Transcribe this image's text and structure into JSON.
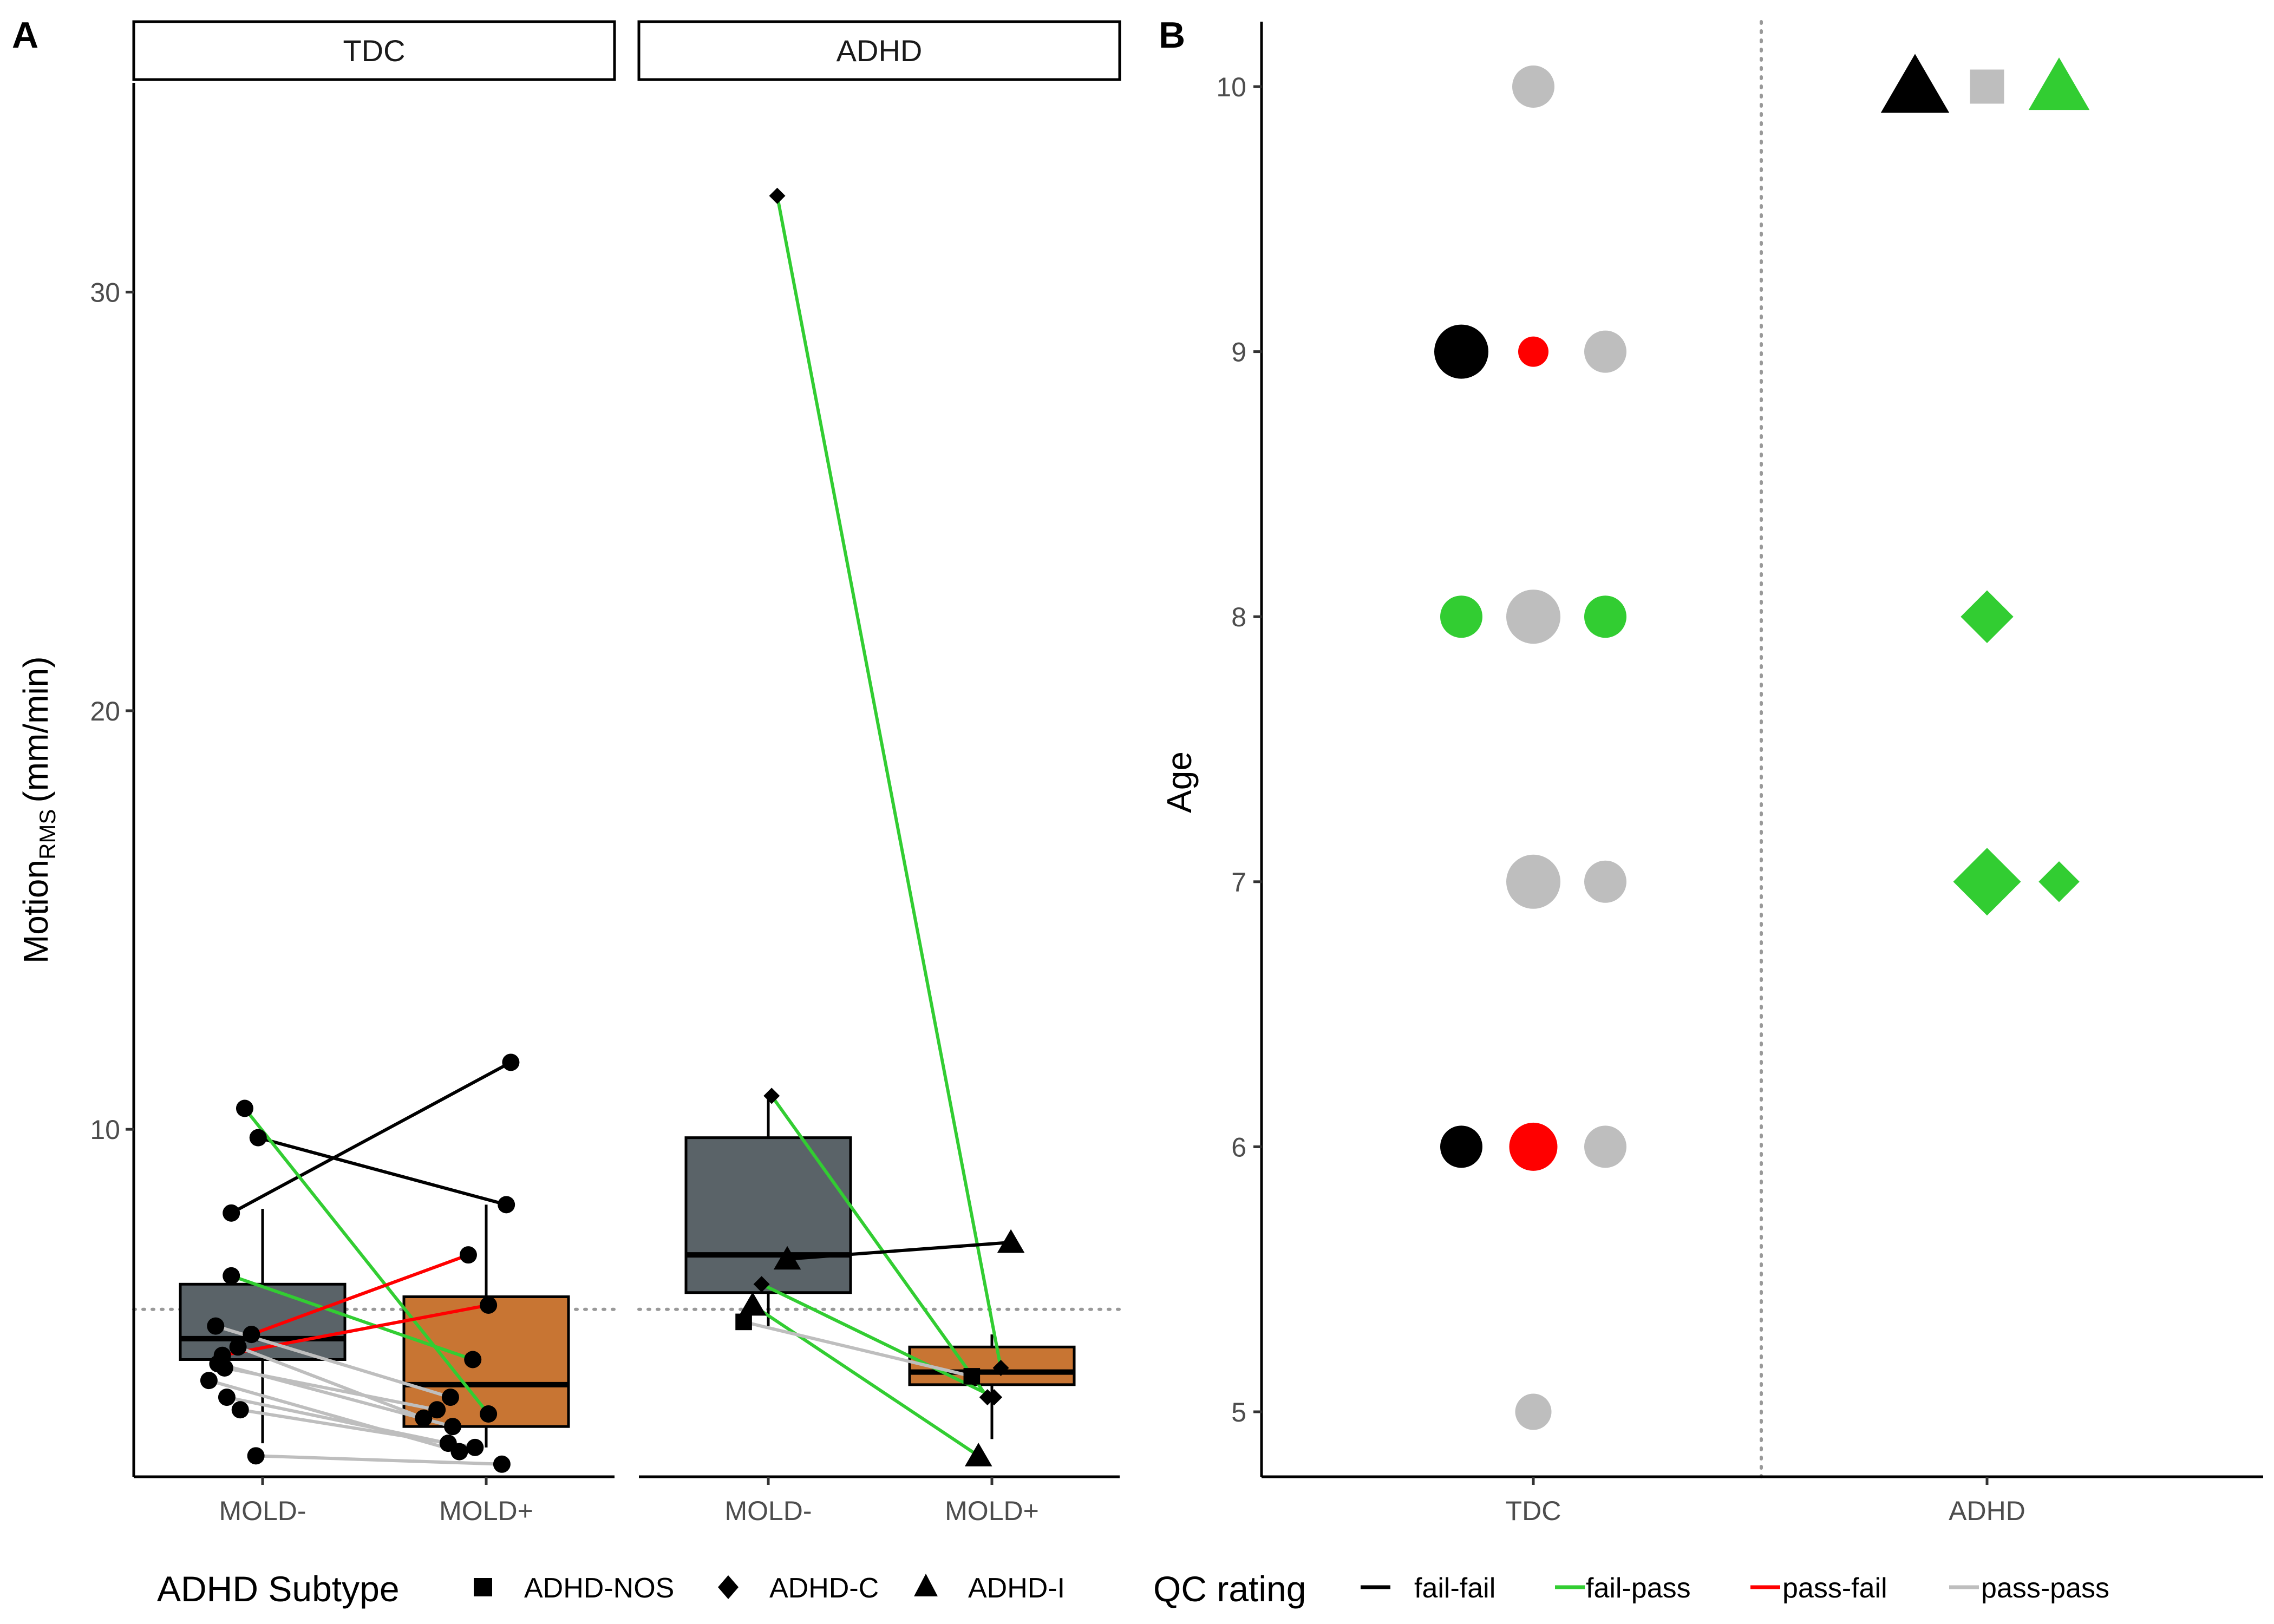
{
  "panel_labels": [
    "A",
    "B"
  ],
  "legend": {
    "shape_title": "ADHD Subtype",
    "shapes": [
      {
        "label": "ADHD-NOS",
        "shape": "square"
      },
      {
        "label": "ADHD-C",
        "shape": "diamond"
      },
      {
        "label": "ADHD-I",
        "shape": "triangle"
      }
    ],
    "color_title": "QC rating",
    "colors": [
      {
        "label": "fail-fail",
        "color": "#000000"
      },
      {
        "label": "fail-pass",
        "color": "#32CD32"
      },
      {
        "label": "pass-fail",
        "color": "#FF0000"
      },
      {
        "label": "pass-pass",
        "color": "#BEBEBE"
      }
    ]
  },
  "chart_data": [
    {
      "panel": "A",
      "type": "box",
      "ylabel": "Motion",
      "ylabel_subscript": "RMS",
      "ylabel_unit": "(mm/min)",
      "ylim": [
        1.7,
        35
      ],
      "yticks": [
        10,
        20,
        30
      ],
      "reference_line_y": 5.7,
      "facets": [
        "TDC",
        "ADHD"
      ],
      "categories": [
        "MOLD-",
        "MOLD+"
      ],
      "box_colors": {
        "MOLD-": "#5A6368",
        "MOLD+": "#C87533"
      },
      "boxes": [
        {
          "facet": "TDC",
          "category": "MOLD-",
          "lower_whisker": 2.5,
          "q1": 4.5,
          "median": 5.0,
          "q3": 6.3,
          "upper_whisker": 8.1
        },
        {
          "facet": "TDC",
          "category": "MOLD+",
          "lower_whisker": 2.4,
          "q1": 2.9,
          "median": 3.9,
          "q3": 6.0,
          "upper_whisker": 8.2
        },
        {
          "facet": "ADHD",
          "category": "MOLD-",
          "lower_whisker": 5.3,
          "q1": 6.1,
          "median": 7.0,
          "q3": 9.8,
          "upper_whisker": 10.8
        },
        {
          "facet": "ADHD",
          "category": "MOLD+",
          "lower_whisker": 2.6,
          "q1": 3.9,
          "median": 4.2,
          "q3": 4.8,
          "upper_whisker": 5.1
        }
      ],
      "pairs": [
        {
          "facet": "TDC",
          "subtype": "",
          "qc": "fail-fail",
          "x": [
            -0.28,
            0.22
          ],
          "y": [
            8.0,
            11.6
          ]
        },
        {
          "facet": "TDC",
          "subtype": "",
          "qc": "fail-fail",
          "x": [
            -0.04,
            0.18
          ],
          "y": [
            9.8,
            8.2
          ]
        },
        {
          "facet": "TDC",
          "subtype": "",
          "qc": "fail-pass",
          "x": [
            -0.16,
            0.02
          ],
          "y": [
            10.5,
            3.2
          ]
        },
        {
          "facet": "TDC",
          "subtype": "",
          "qc": "fail-pass",
          "x": [
            -0.28,
            -0.12
          ],
          "y": [
            6.5,
            4.5
          ]
        },
        {
          "facet": "TDC",
          "subtype": "",
          "qc": "pass-fail",
          "x": [
            -0.1,
            -0.16
          ],
          "y": [
            5.1,
            7.0
          ]
        },
        {
          "facet": "TDC",
          "subtype": "",
          "qc": "pass-fail",
          "x": [
            -0.36,
            0.02
          ],
          "y": [
            4.6,
            5.8
          ]
        },
        {
          "facet": "TDC",
          "subtype": "",
          "qc": "pass-pass",
          "x": [
            -0.42,
            -0.32
          ],
          "y": [
            5.3,
            3.6
          ]
        },
        {
          "facet": "TDC",
          "subtype": "",
          "qc": "pass-pass",
          "x": [
            -0.34,
            -0.44
          ],
          "y": [
            4.3,
            3.3
          ]
        },
        {
          "facet": "TDC",
          "subtype": "",
          "qc": "pass-pass",
          "x": [
            -0.22,
            -0.56
          ],
          "y": [
            4.8,
            3.1
          ]
        },
        {
          "facet": "TDC",
          "subtype": "",
          "qc": "pass-pass",
          "x": [
            -0.4,
            -0.3
          ],
          "y": [
            4.4,
            2.9
          ]
        },
        {
          "facet": "TDC",
          "subtype": "",
          "qc": "pass-pass",
          "x": [
            -0.48,
            -0.24
          ],
          "y": [
            4.0,
            2.3
          ]
        },
        {
          "facet": "TDC",
          "subtype": "",
          "qc": "pass-pass",
          "x": [
            -0.32,
            -0.34
          ],
          "y": [
            3.6,
            2.5
          ]
        },
        {
          "facet": "TDC",
          "subtype": "",
          "qc": "pass-pass",
          "x": [
            -0.2,
            -0.1
          ],
          "y": [
            3.3,
            2.4
          ]
        },
        {
          "facet": "TDC",
          "subtype": "",
          "qc": "pass-pass",
          "x": [
            -0.06,
            0.14
          ],
          "y": [
            2.2,
            2.0
          ]
        },
        {
          "facet": "ADHD",
          "subtype": "ADHD-C",
          "qc": "fail-pass",
          "x": [
            0.08,
            0.08
          ],
          "y": [
            32.3,
            4.3
          ]
        },
        {
          "facet": "ADHD",
          "subtype": "ADHD-C",
          "qc": "fail-pass",
          "x": [
            0.03,
            -0.04
          ],
          "y": [
            10.8,
            3.6
          ]
        },
        {
          "facet": "ADHD",
          "subtype": "ADHD-C",
          "qc": "fail-pass",
          "x": [
            -0.06,
            0.02
          ],
          "y": [
            6.3,
            3.6
          ]
        },
        {
          "facet": "ADHD",
          "subtype": "ADHD-I",
          "qc": "fail-pass",
          "x": [
            -0.14,
            -0.12
          ],
          "y": [
            5.8,
            2.2
          ]
        },
        {
          "facet": "ADHD",
          "subtype": "ADHD-I",
          "qc": "fail-fail",
          "x": [
            0.17,
            0.17
          ],
          "y": [
            6.9,
            7.3
          ]
        },
        {
          "facet": "ADHD",
          "subtype": "ADHD-NOS",
          "qc": "pass-pass",
          "x": [
            -0.22,
            -0.18
          ],
          "y": [
            5.4,
            4.1
          ]
        }
      ]
    },
    {
      "panel": "B",
      "type": "scatter",
      "ylabel": "Age",
      "ylim": [
        4.8,
        10.25
      ],
      "yticks": [
        5,
        6,
        7,
        8,
        9,
        10
      ],
      "categories": [
        "TDC",
        "ADHD"
      ],
      "points": [
        {
          "group": "TDC",
          "age": 10,
          "qc": "pass-pass",
          "subtype": "",
          "n": 2,
          "offset": 0
        },
        {
          "group": "TDC",
          "age": 9,
          "qc": "fail-fail",
          "subtype": "",
          "n": 3,
          "offset": -1
        },
        {
          "group": "TDC",
          "age": 9,
          "qc": "pass-fail",
          "subtype": "",
          "n": 1,
          "offset": 0
        },
        {
          "group": "TDC",
          "age": 9,
          "qc": "pass-pass",
          "subtype": "",
          "n": 2,
          "offset": 1
        },
        {
          "group": "TDC",
          "age": 8,
          "qc": "fail-pass",
          "subtype": "",
          "n": 2,
          "offset": -1
        },
        {
          "group": "TDC",
          "age": 8,
          "qc": "pass-pass",
          "subtype": "",
          "n": 3,
          "offset": 0
        },
        {
          "group": "TDC",
          "age": 8,
          "qc": "fail-pass",
          "subtype": "",
          "n": 2,
          "offset": 1
        },
        {
          "group": "TDC",
          "age": 7,
          "qc": "pass-pass",
          "subtype": "",
          "n": 3,
          "offset": 0
        },
        {
          "group": "TDC",
          "age": 7,
          "qc": "pass-pass",
          "subtype": "",
          "n": 2,
          "offset": 1
        },
        {
          "group": "TDC",
          "age": 6,
          "qc": "fail-fail",
          "subtype": "",
          "n": 2,
          "offset": -1
        },
        {
          "group": "TDC",
          "age": 6,
          "qc": "pass-fail",
          "subtype": "",
          "n": 2.5,
          "offset": 0
        },
        {
          "group": "TDC",
          "age": 6,
          "qc": "pass-pass",
          "subtype": "",
          "n": 2,
          "offset": 1
        },
        {
          "group": "TDC",
          "age": 5,
          "qc": "pass-pass",
          "subtype": "",
          "n": 1.5,
          "offset": 0
        },
        {
          "group": "ADHD",
          "age": 10,
          "qc": "fail-fail",
          "subtype": "ADHD-I",
          "n": 3,
          "offset": -1
        },
        {
          "group": "ADHD",
          "age": 10,
          "qc": "pass-pass",
          "subtype": "ADHD-NOS",
          "n": 2,
          "offset": 0
        },
        {
          "group": "ADHD",
          "age": 10,
          "qc": "fail-pass",
          "subtype": "ADHD-I",
          "n": 2.5,
          "offset": 1
        },
        {
          "group": "ADHD",
          "age": 8,
          "qc": "fail-pass",
          "subtype": "ADHD-C",
          "n": 2,
          "offset": 0
        },
        {
          "group": "ADHD",
          "age": 7,
          "qc": "fail-pass",
          "subtype": "ADHD-C",
          "n": 3,
          "offset": 0
        },
        {
          "group": "ADHD",
          "age": 7,
          "qc": "fail-pass",
          "subtype": "ADHD-C",
          "n": 1.2,
          "offset": 1
        }
      ]
    }
  ]
}
